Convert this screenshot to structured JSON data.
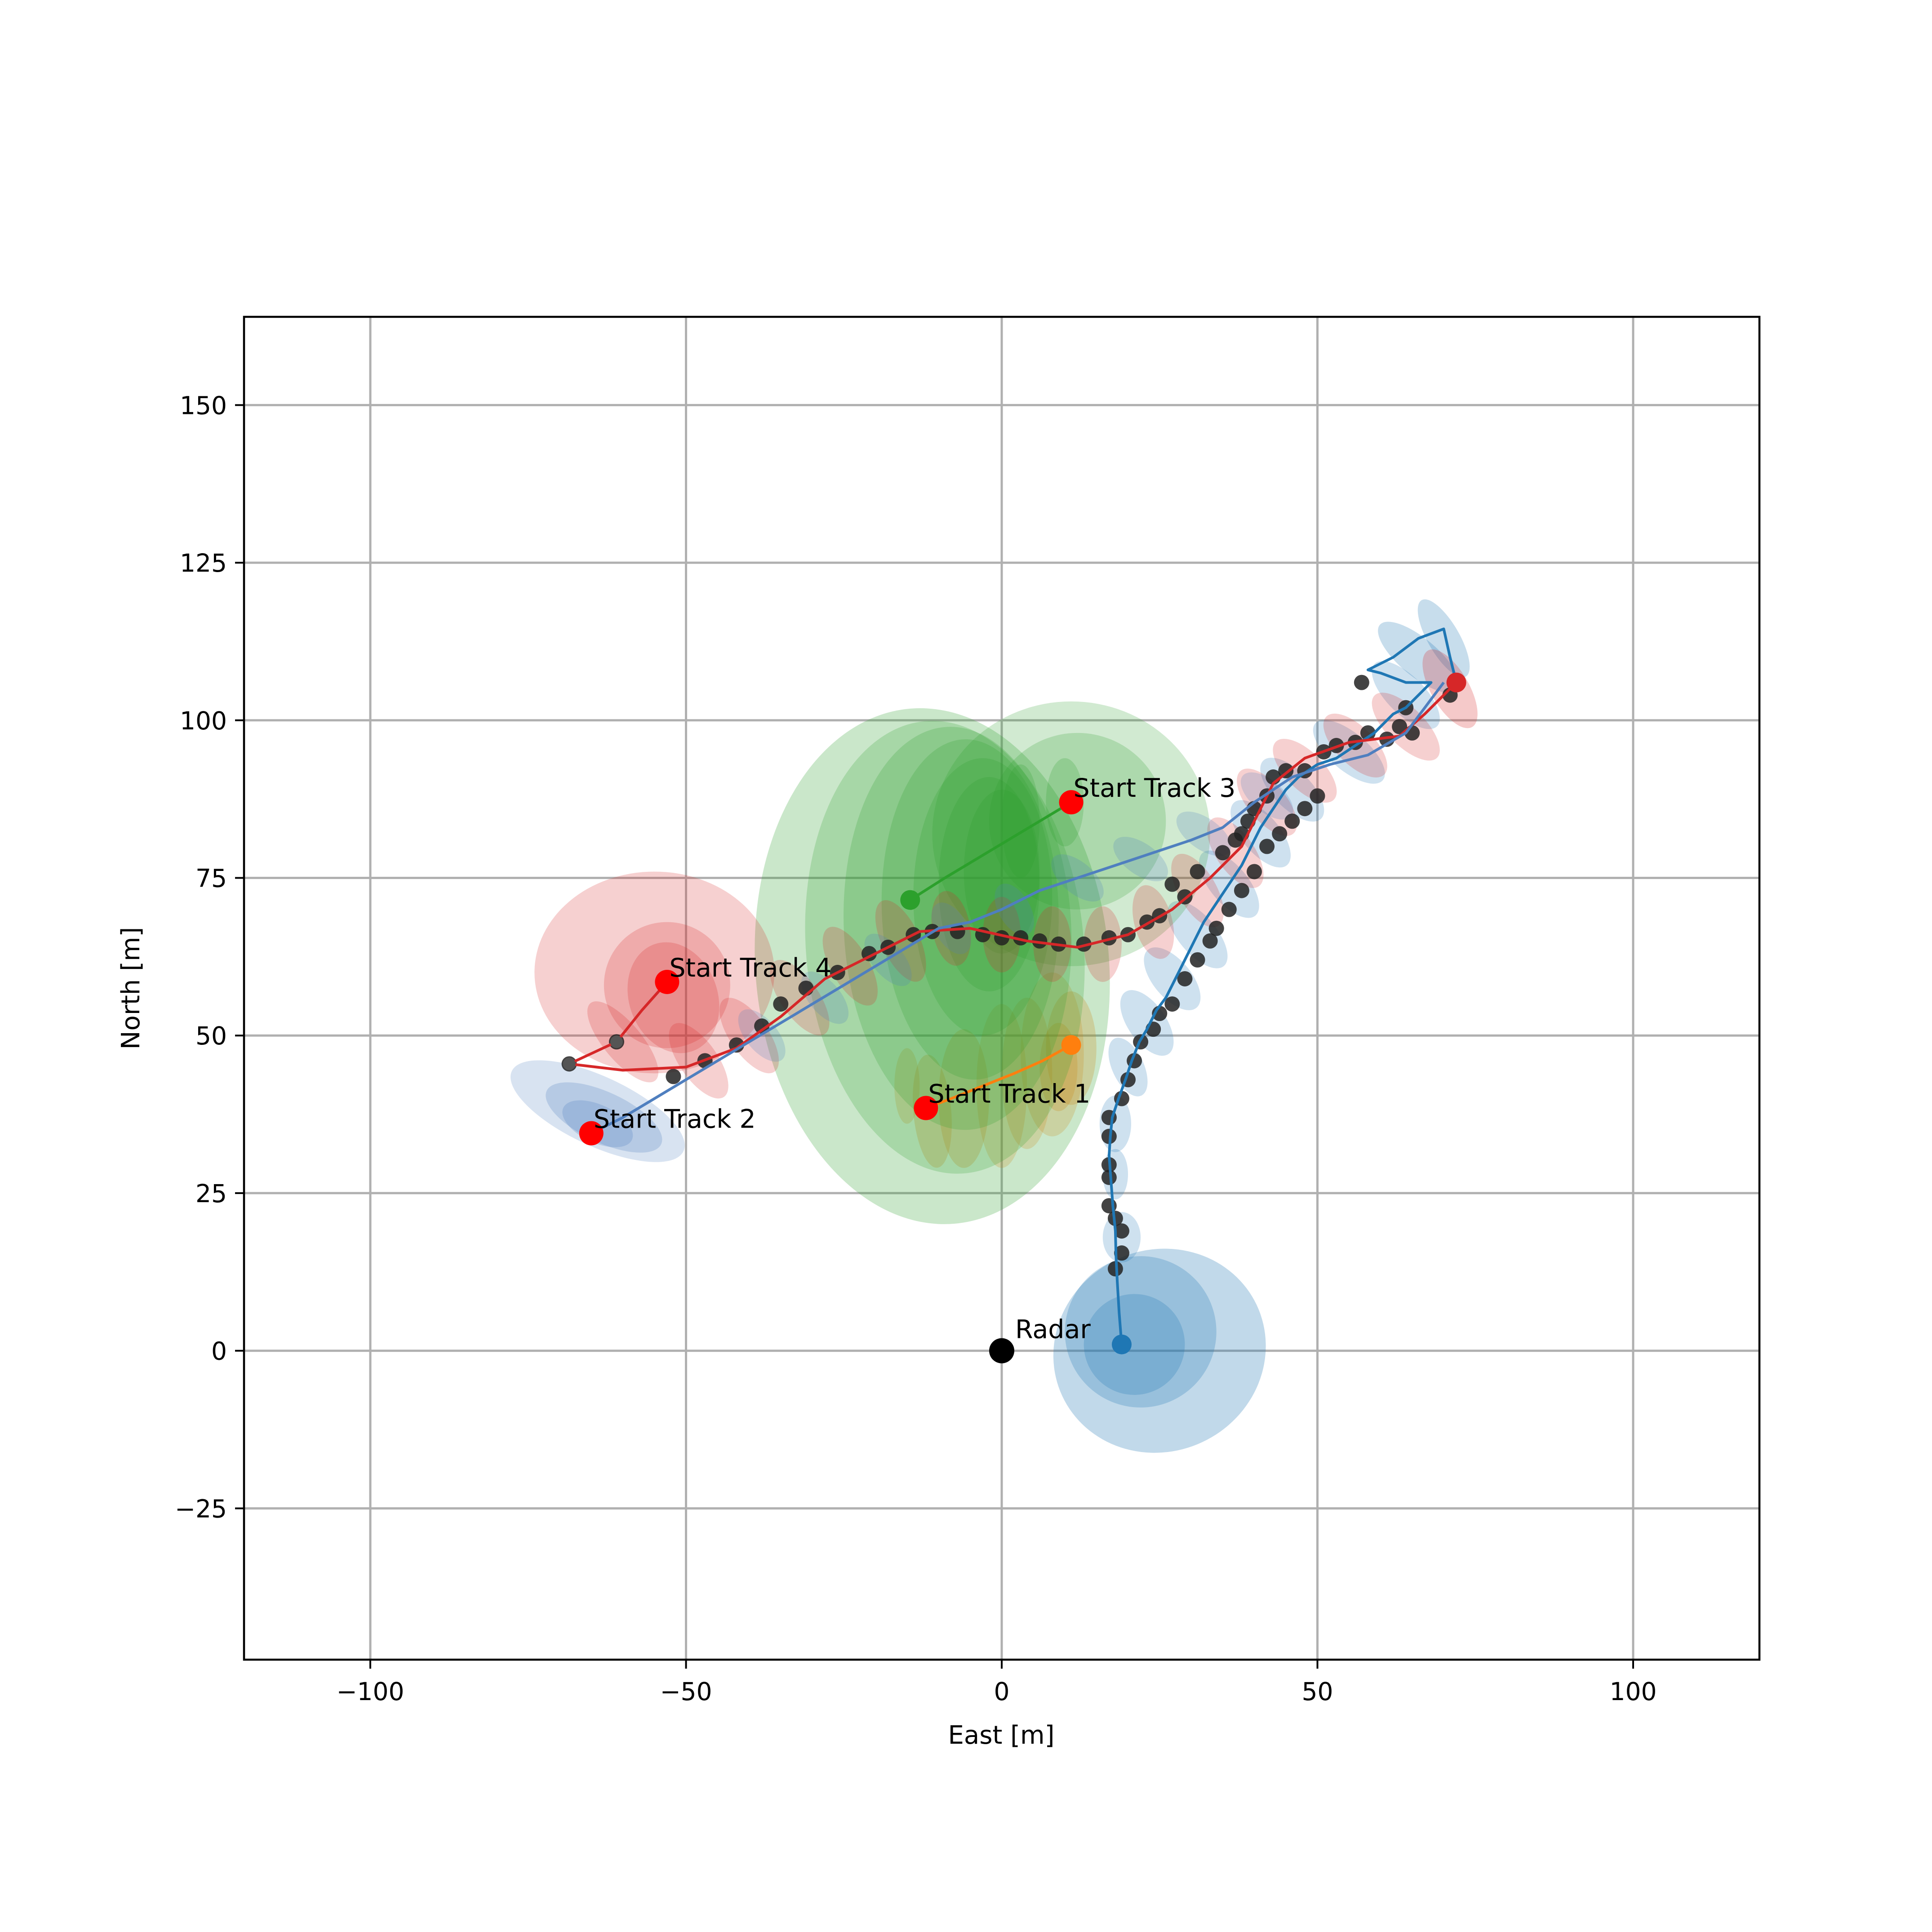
{
  "chart_data": {
    "type": "line",
    "title": "",
    "xlabel": "East [m]",
    "ylabel": "North [m]",
    "xlim": [
      -120,
      120
    ],
    "ylim": [
      -49,
      164
    ],
    "xticks": [
      -100,
      -50,
      0,
      50,
      100
    ],
    "xtick_labels": [
      "−100",
      "−50",
      "0",
      "50",
      "100"
    ],
    "yticks": [
      -25,
      0,
      25,
      50,
      75,
      100,
      125,
      150
    ],
    "ytick_labels": [
      "−25",
      "0",
      "25",
      "50",
      "75",
      "100",
      "125",
      "150"
    ],
    "grid": true,
    "colors": {
      "track1": "#1f77b4",
      "track2": "#ff7f0e",
      "track3": "#2ca02c",
      "track4": "#d62728",
      "track5": "#4f7fbf",
      "marker_start": "#ff0000",
      "radar": "#000000",
      "measurement": "#222222"
    },
    "radar": {
      "x": 0,
      "y": 0,
      "label": "Radar"
    },
    "tracks": [
      {
        "color": "#1f77b4",
        "start_label": "",
        "points": [
          [
            19,
            1
          ],
          [
            18.6,
            6
          ],
          [
            18.3,
            11
          ],
          [
            18.1,
            15
          ],
          [
            18,
            19
          ],
          [
            17.6,
            23
          ],
          [
            17.3,
            27
          ],
          [
            17,
            31
          ],
          [
            17.2,
            34
          ],
          [
            17.5,
            37
          ],
          [
            18.5,
            40
          ],
          [
            19.6,
            43
          ],
          [
            20.6,
            46
          ],
          [
            21.8,
            49
          ],
          [
            23,
            51
          ],
          [
            24.5,
            54
          ],
          [
            26,
            56
          ],
          [
            27.5,
            59
          ],
          [
            29,
            62
          ],
          [
            30.5,
            65
          ],
          [
            32,
            68
          ],
          [
            34,
            71
          ],
          [
            36,
            74
          ],
          [
            38,
            77
          ],
          [
            39.5,
            80
          ],
          [
            41,
            83
          ],
          [
            43,
            86
          ],
          [
            45,
            89
          ],
          [
            47,
            91
          ],
          [
            50,
            93
          ],
          [
            53,
            94
          ],
          [
            56,
            96
          ],
          [
            59,
            98
          ],
          [
            62,
            101
          ],
          [
            64,
            102
          ],
          [
            66,
            104
          ],
          [
            68,
            106
          ],
          [
            64,
            106
          ],
          [
            60,
            107.5
          ],
          [
            58,
            108
          ],
          [
            62,
            110
          ],
          [
            66,
            113
          ],
          [
            70,
            114.5
          ],
          [
            71,
            110
          ],
          [
            72,
            106
          ]
        ],
        "ellipses": [
          [
            25,
            0,
            17,
            16,
            25,
            0.28
          ],
          [
            22,
            3,
            12,
            12,
            25,
            0.25
          ],
          [
            21,
            1,
            8,
            8,
            25,
            0.25
          ],
          [
            19,
            18,
            3,
            4,
            0,
            0.22
          ],
          [
            18,
            28,
            2,
            4,
            0,
            0.22
          ],
          [
            18,
            36,
            2.5,
            4.5,
            0,
            0.22
          ],
          [
            20,
            45,
            2.5,
            5,
            25,
            0.22
          ],
          [
            23,
            52,
            3,
            6,
            35,
            0.22
          ],
          [
            27,
            59,
            3,
            6,
            40,
            0.22
          ],
          [
            31,
            66,
            3,
            6.5,
            40,
            0.22
          ],
          [
            36,
            74,
            3,
            6.5,
            40,
            0.22
          ],
          [
            41,
            82,
            3,
            6.5,
            40,
            0.22
          ],
          [
            46,
            89,
            3,
            6.5,
            45,
            0.22
          ],
          [
            55,
            95,
            3,
            7,
            50,
            0.22
          ],
          [
            64,
            104,
            3,
            7,
            45,
            0.22
          ],
          [
            66,
            110,
            3,
            8,
            50,
            0.25
          ],
          [
            70,
            113,
            2.5,
            7,
            30,
            0.25
          ]
        ],
        "measurements": []
      },
      {
        "color": "#ff7f0e",
        "start_label": "Start Track 1",
        "points": [
          [
            -12,
            38.5
          ],
          [
            -8,
            40
          ],
          [
            -3,
            42
          ],
          [
            2,
            44
          ],
          [
            6.5,
            46
          ],
          [
            11,
            48.5
          ]
        ],
        "ellipses": [
          [
            -11,
            38,
            3,
            9,
            5,
            0.25
          ],
          [
            -6,
            40,
            4,
            11,
            0,
            0.25
          ],
          [
            0,
            42,
            4,
            13,
            0,
            0.22
          ],
          [
            4,
            44,
            4,
            12,
            0,
            0.22
          ],
          [
            8,
            47,
            5,
            13,
            0,
            0.22
          ],
          [
            11,
            48,
            4,
            9,
            0,
            0.25
          ],
          [
            9,
            45,
            3,
            7,
            0,
            0.25
          ],
          [
            -15,
            42,
            2,
            6,
            0,
            0.22
          ]
        ],
        "measurements": []
      },
      {
        "color": "#2ca02c",
        "start_label": "Start Track 3",
        "points": [
          [
            11,
            87
          ],
          [
            6,
            84
          ],
          [
            1,
            81
          ],
          [
            -4,
            78
          ],
          [
            -9,
            75
          ],
          [
            -14.5,
            71.5
          ]
        ],
        "ellipses": [
          [
            -11,
            61,
            28,
            41,
            5,
            0.25
          ],
          [
            -9,
            64,
            22,
            36,
            5,
            0.22
          ],
          [
            -7,
            67,
            18,
            32,
            3,
            0.22
          ],
          [
            -5,
            70,
            14,
            27,
            2,
            0.22
          ],
          [
            -3,
            72,
            11,
            22,
            0,
            0.22
          ],
          [
            -2,
            74,
            8,
            17,
            0,
            0.22
          ],
          [
            0,
            76,
            6,
            13,
            0,
            0.22
          ],
          [
            11,
            82,
            22,
            21,
            0,
            0.22
          ],
          [
            12,
            84,
            14,
            14,
            0,
            0.22
          ],
          [
            3,
            84,
            3,
            9,
            0,
            0.22
          ],
          [
            10,
            87,
            3,
            7,
            0,
            0.22
          ]
        ],
        "measurements": []
      },
      {
        "color": "#d62728",
        "start_label": "Start Track 4",
        "points": [
          [
            -53,
            58.5
          ],
          [
            -57,
            54
          ],
          [
            -61,
            49
          ],
          [
            -68.5,
            45.5
          ],
          [
            -60,
            44.5
          ],
          [
            -50,
            45
          ],
          [
            -42,
            48
          ],
          [
            -35,
            53
          ],
          [
            -28,
            59
          ],
          [
            -20,
            63
          ],
          [
            -13,
            66.5
          ],
          [
            -5,
            67
          ],
          [
            4,
            65
          ],
          [
            12,
            64
          ],
          [
            20,
            66
          ],
          [
            27,
            70
          ],
          [
            33,
            75
          ],
          [
            38,
            80
          ],
          [
            41,
            86
          ],
          [
            43,
            90
          ],
          [
            48,
            94
          ],
          [
            55,
            96.5
          ],
          [
            63,
            97.5
          ],
          [
            67,
            101
          ],
          [
            72,
            106
          ]
        ],
        "ellipses": [
          [
            -55,
            60,
            19,
            16,
            0,
            0.22
          ],
          [
            -53,
            58,
            10,
            10,
            0,
            0.22
          ],
          [
            -52,
            56,
            7,
            9,
            20,
            0.22
          ],
          [
            -60,
            49,
            3,
            8,
            40,
            0.22
          ],
          [
            -48,
            46,
            3,
            7,
            35,
            0.22
          ],
          [
            -40,
            50,
            3,
            7,
            35,
            0.22
          ],
          [
            -32,
            56,
            3,
            7,
            35,
            0.22
          ],
          [
            -24,
            61,
            3,
            7,
            30,
            0.22
          ],
          [
            -16,
            65,
            3,
            7,
            25,
            0.22
          ],
          [
            -8,
            67,
            3,
            6,
            10,
            0.22
          ],
          [
            0,
            66,
            3,
            6,
            0,
            0.22
          ],
          [
            8,
            64.5,
            3,
            6,
            0,
            0.22
          ],
          [
            16,
            64.5,
            3,
            6,
            0,
            0.22
          ],
          [
            24,
            68,
            3,
            6,
            15,
            0.22
          ],
          [
            31,
            73,
            3,
            6.5,
            30,
            0.22
          ],
          [
            37,
            79,
            3,
            6.5,
            35,
            0.22
          ],
          [
            42,
            87,
            3,
            6.5,
            40,
            0.22
          ],
          [
            48,
            92,
            3,
            6.5,
            45,
            0.22
          ],
          [
            56,
            96,
            3,
            6.5,
            45,
            0.22
          ],
          [
            64,
            99,
            3,
            7,
            45,
            0.22
          ],
          [
            71,
            105,
            3,
            7,
            30,
            0.25
          ]
        ],
        "measurements": [
          [
            -53,
            58.5
          ],
          [
            -61,
            49
          ],
          [
            -68.5,
            45.5
          ]
        ]
      },
      {
        "color": "#4f7fbf",
        "start_label": "Start Track 2",
        "points": [
          [
            -65,
            34.5
          ],
          [
            -60,
            37
          ],
          [
            -55,
            40
          ],
          [
            -50,
            43
          ],
          [
            -45,
            46
          ],
          [
            -40,
            49
          ],
          [
            -35,
            52
          ],
          [
            -30,
            55
          ],
          [
            -25,
            58
          ],
          [
            -20,
            61
          ],
          [
            -15,
            64
          ],
          [
            -10,
            67
          ],
          [
            -5,
            68
          ],
          [
            0,
            70
          ],
          [
            6,
            73
          ],
          [
            12,
            75
          ],
          [
            18,
            77
          ],
          [
            24,
            79
          ],
          [
            30,
            81
          ],
          [
            35,
            83
          ],
          [
            40,
            87
          ],
          [
            46,
            91
          ],
          [
            52,
            93
          ],
          [
            58,
            94.5
          ],
          [
            64,
            98
          ],
          [
            70,
            106
          ]
        ],
        "ellipses": [
          [
            -64,
            38,
            15,
            5.5,
            -25,
            0.22
          ],
          [
            -63,
            37,
            10,
            4,
            -25,
            0.25
          ],
          [
            -64,
            36,
            6,
            3,
            -25,
            0.25
          ],
          [
            -38,
            50,
            2.5,
            5,
            40,
            0.22
          ],
          [
            -28,
            56,
            2.5,
            5,
            40,
            0.22
          ],
          [
            -18,
            62,
            2.5,
            5,
            40,
            0.22
          ],
          [
            -8,
            67,
            2.5,
            4.5,
            30,
            0.22
          ],
          [
            2,
            70,
            2.5,
            4.5,
            30,
            0.22
          ],
          [
            12,
            75,
            2.5,
            5,
            50,
            0.22
          ],
          [
            22,
            78,
            2.5,
            5,
            55,
            0.22
          ],
          [
            32,
            82,
            2.5,
            5,
            55,
            0.22
          ],
          [
            42,
            88,
            2.5,
            5,
            50,
            0.22
          ]
        ],
        "measurements": []
      }
    ],
    "measurements": [
      [
        -68.5,
        45.5
      ],
      [
        -61,
        49
      ],
      [
        -52,
        43.5
      ],
      [
        -47,
        46
      ],
      [
        -42,
        48.5
      ],
      [
        -38,
        51.5
      ],
      [
        -35,
        55
      ],
      [
        -31,
        57.5
      ],
      [
        -26,
        60
      ],
      [
        -21,
        63
      ],
      [
        -18,
        64
      ],
      [
        -14,
        66
      ],
      [
        -11,
        66.5
      ],
      [
        -7,
        66.5
      ],
      [
        -3,
        66
      ],
      [
        0,
        65.5
      ],
      [
        3,
        65.5
      ],
      [
        6,
        65
      ],
      [
        9,
        64.5
      ],
      [
        13,
        64.5
      ],
      [
        17,
        65.5
      ],
      [
        20,
        66
      ],
      [
        23,
        68
      ],
      [
        25,
        69
      ],
      [
        27,
        74
      ],
      [
        29,
        72
      ],
      [
        31,
        76
      ],
      [
        35,
        79
      ],
      [
        37,
        81
      ],
      [
        38,
        82
      ],
      [
        39,
        84
      ],
      [
        40,
        86
      ],
      [
        42,
        88
      ],
      [
        43,
        91
      ],
      [
        45,
        92
      ],
      [
        48,
        92
      ],
      [
        51,
        95
      ],
      [
        53,
        96
      ],
      [
        56,
        96.5
      ],
      [
        58,
        98
      ],
      [
        61,
        97
      ],
      [
        63,
        99
      ],
      [
        64,
        102
      ],
      [
        65,
        98
      ],
      [
        71,
        104
      ],
      [
        57,
        106
      ],
      [
        18,
        13
      ],
      [
        19,
        15.5
      ],
      [
        19,
        19
      ],
      [
        18,
        21
      ],
      [
        17,
        23
      ],
      [
        17,
        27.5
      ],
      [
        17,
        29.5
      ],
      [
        17,
        34
      ],
      [
        17,
        37
      ],
      [
        19,
        40
      ],
      [
        20,
        43
      ],
      [
        21,
        46
      ],
      [
        22,
        49
      ],
      [
        24,
        51
      ],
      [
        25,
        53.5
      ],
      [
        27,
        55
      ],
      [
        29,
        59
      ],
      [
        31,
        62
      ],
      [
        33,
        65
      ],
      [
        34,
        67
      ],
      [
        36,
        70
      ],
      [
        38,
        73
      ],
      [
        40,
        76
      ],
      [
        42,
        80
      ],
      [
        44,
        82
      ],
      [
        46,
        84
      ],
      [
        48,
        86
      ],
      [
        50,
        88
      ]
    ],
    "annotations": [
      {
        "text": "Start Track 1",
        "x": -12,
        "y": 38.5
      },
      {
        "text": "Start Track 2",
        "x": -65,
        "y": 34.5
      },
      {
        "text": "Start Track 3",
        "x": 11,
        "y": 87
      },
      {
        "text": "Start Track 4",
        "x": -53,
        "y": 58.5
      },
      {
        "text": "Radar",
        "x": 0,
        "y": 0
      }
    ]
  }
}
